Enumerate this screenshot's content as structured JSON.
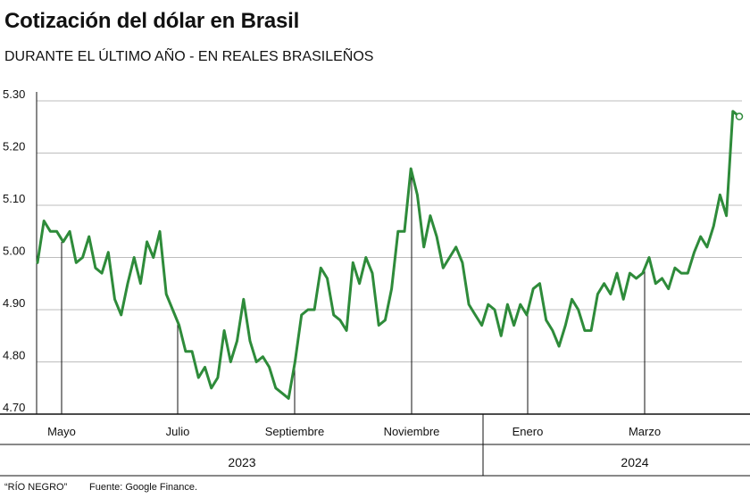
{
  "title": "Cotización del dólar en Brasil",
  "subtitle": "DURANTE EL ÚLTIMO AÑO - EN REALES BRASILEÑOS",
  "footer": {
    "brand": "“RÍO NEGRO”",
    "source": "Fuente: Google Finance."
  },
  "colors": {
    "line": "#2e8b3a",
    "grid": "#bdbdbd",
    "axis": "#111111"
  },
  "chart_data": {
    "type": "line",
    "title": "Cotización del dólar en Brasil",
    "subtitle": "DURANTE EL ÚLTIMO AÑO - EN REALES BRASILEÑOS",
    "xlabel": "",
    "ylabel": "",
    "ylim": [
      4.7,
      5.3
    ],
    "y_ticks": [
      "4.70",
      "4.80",
      "4.90",
      "5.00",
      "5.10",
      "5.20",
      "5.30"
    ],
    "grid": true,
    "x_tick_labels": [
      "Mayo",
      "Julio",
      "Septiembre",
      "Noviembre",
      "Enero",
      "Marzo"
    ],
    "years": [
      "2023",
      "2024"
    ],
    "series": [
      {
        "values": [
          4.99,
          5.07,
          5.05,
          5.05,
          5.03,
          5.05,
          4.99,
          5.0,
          5.04,
          4.98,
          4.97,
          5.01,
          4.92,
          4.89,
          4.95,
          5.0,
          4.95,
          5.03,
          5.0,
          5.05,
          4.93,
          4.9,
          4.87,
          4.82,
          4.82,
          4.77,
          4.79,
          4.75,
          4.77,
          4.86,
          4.8,
          4.84,
          4.92,
          4.84,
          4.8,
          4.81,
          4.79,
          4.75,
          4.74,
          4.73,
          4.8,
          4.89,
          4.9,
          4.9,
          4.98,
          4.96,
          4.89,
          4.88,
          4.86,
          4.99,
          4.95,
          5.0,
          4.97,
          4.87,
          4.88,
          4.94,
          5.05,
          5.05,
          5.17,
          5.12,
          5.02,
          5.08,
          5.04,
          4.98,
          5.0,
          5.02,
          4.99,
          4.91,
          4.89,
          4.87,
          4.91,
          4.9,
          4.85,
          4.91,
          4.87,
          4.91,
          4.89,
          4.94,
          4.95,
          4.88,
          4.86,
          4.83,
          4.87,
          4.92,
          4.9,
          4.86,
          4.86,
          4.93,
          4.95,
          4.93,
          4.97,
          4.92,
          4.97,
          4.96,
          4.97,
          5.0,
          4.95,
          4.96,
          4.94,
          4.98,
          4.97,
          4.97,
          5.01,
          5.04,
          5.02,
          5.06,
          5.12,
          5.08,
          5.28,
          5.27
        ]
      }
    ]
  }
}
